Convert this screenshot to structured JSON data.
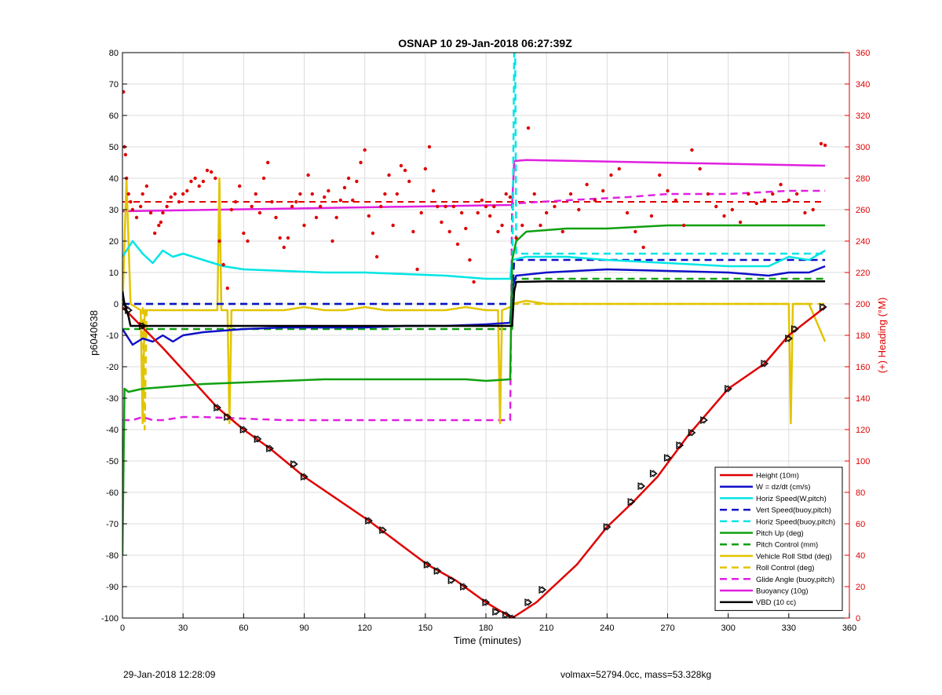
{
  "footer": {
    "date_text": "29-Jan-2018 12:28:09",
    "summary_text": "volmax=52794.0cc, mass=53.328kg"
  },
  "chart_data": {
    "type": "line",
    "title": "OSNAP 10 29-Jan-2018 06:27:39Z",
    "xlabel": "Time (minutes)",
    "ylabel": "p6040638",
    "y2label": "(+) Heading (°M)",
    "xlim": [
      0,
      360
    ],
    "ylim": [
      -100,
      80
    ],
    "y2lim": [
      0,
      360
    ],
    "xticks": [
      0,
      30,
      60,
      90,
      120,
      150,
      180,
      210,
      240,
      270,
      300,
      330,
      360
    ],
    "yticks": [
      -100,
      -90,
      -80,
      -70,
      -60,
      -50,
      -40,
      -30,
      -20,
      -10,
      0,
      10,
      20,
      30,
      40,
      50,
      60,
      70,
      80
    ],
    "y2ticks": [
      0,
      20,
      40,
      60,
      80,
      100,
      120,
      140,
      160,
      180,
      200,
      220,
      240,
      260,
      280,
      300,
      320,
      340,
      360
    ],
    "grid": true,
    "legend_position": "bottom-right",
    "series": [
      {
        "name": "Height (10m)",
        "color": "#e00000",
        "style": "solid",
        "x": [
          0,
          20,
          47,
          60,
          73,
          90,
          122,
          151,
          165,
          180,
          193,
          205,
          225,
          240,
          253,
          265,
          280,
          300,
          318,
          330,
          348
        ],
        "y": [
          -1,
          -14,
          -33,
          -40,
          -46,
          -55,
          -69,
          -83,
          -88,
          -95,
          -100,
          -95,
          -83,
          -71,
          -63,
          -55,
          -42,
          -27,
          -19,
          -10,
          -1
        ]
      },
      {
        "name": "W = dz/dt (cm/s)",
        "color": "#1010c8",
        "style": "solid",
        "x": [
          0,
          5,
          10,
          15,
          20,
          25,
          30,
          40,
          60,
          80,
          100,
          120,
          140,
          160,
          180,
          192,
          193,
          195,
          210,
          240,
          270,
          300,
          320,
          330,
          340,
          348
        ],
        "y": [
          -8,
          -13,
          -11,
          -12,
          -10,
          -12,
          -10,
          -9,
          -8,
          -7.5,
          -7.5,
          -7.5,
          -7,
          -7,
          -6.5,
          -6,
          5,
          9,
          10,
          11,
          10.5,
          10,
          9,
          10,
          10,
          12
        ]
      },
      {
        "name": "Horiz Speed(W,pitch)",
        "color": "#00e5e5",
        "style": "solid",
        "x": [
          0,
          5,
          10,
          15,
          20,
          25,
          30,
          40,
          50,
          60,
          80,
          100,
          120,
          140,
          160,
          180,
          192,
          193,
          200,
          220,
          240,
          270,
          300,
          320,
          330,
          340,
          348
        ],
        "y": [
          15,
          20,
          16,
          13,
          17,
          15,
          16,
          14,
          12,
          11,
          10.5,
          10,
          10,
          9.5,
          9,
          8,
          8,
          14,
          15,
          15,
          14,
          13,
          12,
          12,
          15,
          14,
          17
        ]
      },
      {
        "name": "Vert Speed(buoy,pitch)",
        "color": "#1010c8",
        "style": "dashed",
        "x": [
          0,
          193,
          194,
          348
        ],
        "y": [
          0,
          0,
          14,
          14
        ]
      },
      {
        "name": "Horiz Speed(buoy,pitch)",
        "color": "#00e5e5",
        "style": "dashed",
        "x": [
          0,
          193,
          194,
          194.5,
          195,
          348
        ],
        "y": [
          0,
          0,
          80,
          80,
          16,
          16
        ]
      },
      {
        "name": "Pitch Up (deg)",
        "color": "#10a010",
        "style": "solid",
        "x": [
          0,
          1,
          3,
          10,
          20,
          30,
          40,
          60,
          80,
          100,
          120,
          150,
          170,
          180,
          192,
          193,
          195,
          200,
          220,
          240,
          270,
          300,
          320,
          340,
          348
        ],
        "y": [
          -80,
          -27,
          -28,
          -27,
          -26.5,
          -26,
          -25.5,
          -25,
          -24.5,
          -24,
          -24,
          -24,
          -24,
          -24.5,
          -24,
          14,
          20,
          23,
          24,
          24,
          25,
          25,
          25,
          25,
          25
        ]
      },
      {
        "name": "Pitch Control (mm)",
        "color": "#10a010",
        "style": "dashed",
        "x": [
          0,
          193,
          194,
          348
        ],
        "y": [
          -8,
          -8,
          8,
          8
        ]
      },
      {
        "name": "Vehicle Roll Stbd (deg)",
        "color": "#e2c400",
        "style": "solid",
        "x": [
          0,
          2,
          4,
          9,
          10,
          11,
          47,
          48,
          49,
          52,
          53,
          54,
          60,
          80,
          90,
          100,
          110,
          120,
          130,
          140,
          150,
          160,
          170,
          180,
          186,
          187,
          188,
          192,
          193,
          200,
          210,
          230,
          250,
          270,
          290,
          300,
          320,
          330,
          331,
          332,
          340,
          348
        ],
        "y": [
          -2,
          40,
          0,
          -2,
          -38,
          -2,
          -2,
          40,
          -2,
          -2,
          -38,
          -2,
          -2,
          -2,
          -1,
          -2,
          -2,
          -1,
          -2,
          -2,
          -2,
          -2,
          -1,
          -2,
          -2,
          -38,
          -2,
          -1,
          0,
          1,
          0,
          0,
          0,
          0,
          0,
          0,
          0,
          0,
          -38,
          0,
          0,
          -12
        ]
      },
      {
        "name": "Roll Control (deg)",
        "color": "#e2c400",
        "style": "dashed",
        "x": [
          0,
          10,
          11,
          12,
          60,
          90,
          130,
          160,
          190,
          193,
          215,
          230,
          245,
          265,
          300,
          330,
          340,
          348
        ],
        "y": [
          0,
          0,
          -40,
          0,
          0,
          0,
          0,
          0,
          0,
          0,
          0,
          0,
          0,
          0,
          0,
          0,
          0,
          0
        ]
      },
      {
        "name": "Glide Angle (buoy,pitch)",
        "color": "#e020e0",
        "style": "dashed",
        "x": [
          0,
          5,
          10,
          15,
          20,
          30,
          40,
          60,
          80,
          100,
          120,
          150,
          170,
          192,
          193,
          195,
          220,
          250,
          270,
          300,
          330,
          348
        ],
        "y": [
          -37,
          -37,
          -36,
          -37,
          -37,
          -36,
          -36,
          -36.5,
          -37,
          -37,
          -37,
          -37,
          -37,
          -37,
          32,
          32,
          33,
          34,
          35,
          35,
          36,
          36
        ]
      },
      {
        "name": "Buoyancy (10g)",
        "color": "#e020e0",
        "style": "solid",
        "x": [
          0,
          193,
          194,
          200,
          348
        ],
        "y": [
          29.5,
          31.5,
          45.5,
          45.8,
          44
        ]
      },
      {
        "name": "VBD (10 cc)",
        "color": "#000000",
        "style": "solid",
        "x": [
          0,
          1,
          3,
          4,
          193,
          194,
          195,
          210,
          348
        ],
        "y": [
          4,
          0,
          -4,
          -7,
          -7,
          4,
          7,
          7.2,
          7.2
        ]
      }
    ],
    "heading_points": {
      "name": "(+) Heading (°M)",
      "color": "#e00000",
      "axis": "right",
      "x": [
        0.5,
        1,
        1.5,
        2,
        3,
        4,
        5,
        7,
        9,
        10,
        12,
        14,
        16,
        18,
        19,
        20,
        22,
        24,
        26,
        28,
        30,
        32,
        34,
        36,
        38,
        40,
        42,
        44,
        46,
        48,
        50,
        52,
        54,
        56,
        58,
        60,
        62,
        64,
        66,
        68,
        70,
        72,
        74,
        76,
        78,
        80,
        82,
        84,
        86,
        88,
        90,
        92,
        94,
        96,
        98,
        100,
        102,
        104,
        106,
        108,
        110,
        112,
        114,
        116,
        118,
        120,
        122,
        124,
        126,
        128,
        130,
        132,
        134,
        136,
        138,
        140,
        142,
        144,
        146,
        148,
        150,
        152,
        154,
        156,
        158,
        160,
        162,
        164,
        166,
        168,
        170,
        172,
        174,
        176,
        178,
        180,
        182,
        184,
        186,
        188,
        190,
        192,
        195,
        198,
        201,
        204,
        207,
        210,
        214,
        218,
        222,
        226,
        230,
        234,
        238,
        242,
        246,
        250,
        254,
        258,
        262,
        266,
        270,
        274,
        278,
        282,
        286,
        290,
        294,
        298,
        302,
        306,
        310,
        314,
        318,
        322,
        326,
        330,
        334,
        338,
        342,
        346,
        348
      ],
      "y": [
        335,
        300,
        295,
        280,
        270,
        265,
        260,
        255,
        262,
        270,
        275,
        258,
        245,
        250,
        252,
        258,
        262,
        268,
        270,
        265,
        270,
        272,
        278,
        280,
        275,
        278,
        285,
        284,
        280,
        240,
        225,
        210,
        260,
        265,
        275,
        245,
        240,
        262,
        270,
        258,
        280,
        290,
        265,
        255,
        242,
        236,
        242,
        262,
        265,
        270,
        250,
        282,
        270,
        255,
        262,
        268,
        272,
        240,
        255,
        266,
        274,
        280,
        266,
        278,
        290,
        298,
        256,
        245,
        230,
        262,
        270,
        282,
        250,
        270,
        288,
        285,
        278,
        246,
        222,
        258,
        286,
        300,
        272,
        262,
        252,
        262,
        246,
        262,
        238,
        258,
        248,
        228,
        214,
        258,
        266,
        262,
        256,
        262,
        246,
        250,
        270,
        268,
        242,
        250,
        312,
        270,
        250,
        258,
        262,
        246,
        270,
        260,
        276,
        266,
        272,
        282,
        286,
        258,
        246,
        236,
        256,
        282,
        272,
        266,
        250,
        298,
        286,
        270,
        262,
        256,
        260,
        252,
        270,
        264,
        266,
        270,
        276,
        266,
        270,
        258,
        260,
        302,
        301
      ]
    },
    "heading_mean_line": {
      "color": "#e00000",
      "style": "dashed",
      "y": 265
    },
    "height_markers": {
      "x": [
        1,
        3,
        10,
        47,
        52,
        60,
        67,
        73,
        85,
        90,
        122,
        129,
        151,
        156,
        163,
        169,
        180,
        185,
        190,
        193,
        201,
        208,
        240,
        252,
        257,
        263,
        270,
        276,
        282,
        288,
        300,
        318,
        330,
        333,
        347
      ],
      "y": [
        -1,
        -2,
        -7,
        -33,
        -36,
        -40,
        -43,
        -46,
        -51,
        -55,
        -69,
        -72,
        -83,
        -85,
        -88,
        -90,
        -95,
        -98,
        -99,
        -100,
        -95,
        -91,
        -71,
        -63,
        -58,
        -54,
        -49,
        -45,
        -41,
        -37,
        -27,
        -19,
        -11,
        -8,
        -1
      ]
    }
  }
}
